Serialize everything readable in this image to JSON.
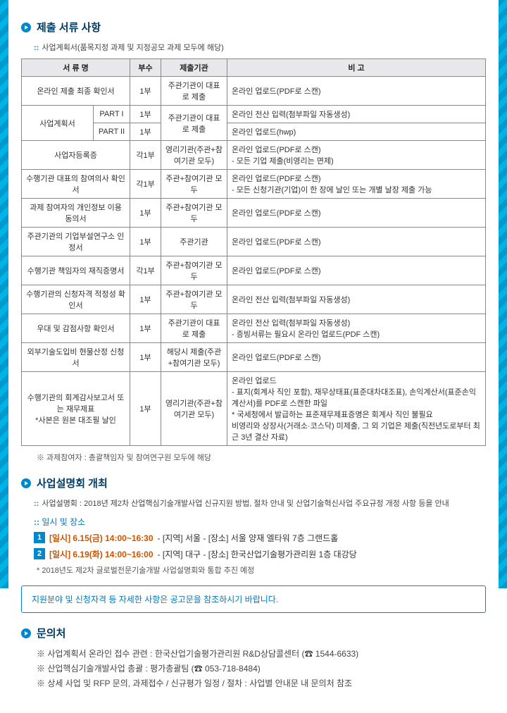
{
  "section1": {
    "title": "제출 서류 사항",
    "note": "사업계획서(품목지정 과제 및 지정공모 과제 모두에 해당)",
    "headers": [
      "서 류 명",
      "부수",
      "제출기관",
      "비 고"
    ],
    "rows": [
      {
        "c0": "온라인 제출 최종 확인서",
        "c1": "1부",
        "c2": "주관기관이 대표로 제출",
        "c3": "온라인 업로드(PDF로 스캔)"
      },
      {
        "c0_rowspan": 2,
        "c0": "사업계획서",
        "mid": "PART I",
        "c1": "1부",
        "c2_rowspan": 2,
        "c2": "주관기관이 대표로 제출",
        "c3": "온라인 전산 입력(첨부파일 자동생성)"
      },
      {
        "mid": "PART II",
        "c1": "1부",
        "c3": "온라인 업로드(hwp)"
      },
      {
        "c0": "사업자등록증",
        "c1": "각1부",
        "c2": "영리기관(주관+참여기관 모두)",
        "c3": "온라인 업로드(PDF로 스캔)\n- 모든 기업 제출(비영리는 면제)"
      },
      {
        "c0": "수행기관 대표의 참여의사 확인서",
        "c1": "각1부",
        "c2": "주관+참여기관 모두",
        "c3": "온라인 업로드(PDF로 스캔)\n- 모든 신청기관(기업)이 한 장에 날인 또는 개별 날장 제출 가능"
      },
      {
        "c0": "과제 참여자의 개인정보 이용 동의서",
        "c1": "1부",
        "c2": "주관+참여기관 모두",
        "c3": "온라인 업로드(PDF로 스캔)"
      },
      {
        "c0": "주관기관의 기업부설연구소 인정서",
        "c1": "1부",
        "c2": "주관기관",
        "c3": "온라인 업로드(PDF로 스캔)"
      },
      {
        "c0": "수행기관 책임자의 재직증명서",
        "c1": "각1부",
        "c2": "주관+참여기관 모두",
        "c3": "온라인 업로드(PDF로 스캔)"
      },
      {
        "c0": "수행기관의 신청자격 적정성 확인서",
        "c1": "1부",
        "c2": "주관+참여기관 모두",
        "c3": "온라인 전산 입력(첨부파일 자동생성)"
      },
      {
        "c0": "우대 및 감점사항 확인서",
        "c1": "1부",
        "c2": "주관기관이 대표로 제출",
        "c3": "온라인 전산 입력(첨부파일 자동생성)\n- 증빙서류는 필요시 온라인 업로드(PDF 스캔)"
      },
      {
        "c0": "외부기술도입비 현물산정 신청서",
        "c1": "1부",
        "c2": "해당시 제출(주관+참여기관 모두)",
        "c3": "온라인 업로드(PDF로 스캔)"
      },
      {
        "c0": "수행기관의 회계감사보고서 또는 재무제표\n*사본은 원본 대조필 날인",
        "c1": "1부",
        "c2": "영리기관(주관+참여기관 모두)",
        "c3": "온라인 업로드\n- 표지(회계사 직인 포함), 재무상태표(표준대차대조표), 손익계산서(표준손익계산서)를 PDF로 스캔한 파일\n* 국세청에서 발급하는 표준재무제표증명은 회계사 직인 불필요\n비영리와 상장사(거래소·코스닥) 미제출, 그 외 기업은 제출(직전년도로부터 최근 3년 결산 자료)"
      }
    ],
    "footnote": "※ 과제참여자 : 총괄책임자 및 참여연구원 모두에 해당"
  },
  "section2": {
    "title": "사업설명회 개최",
    "desc": "사업설명회 : 2018년 제2차 산업핵심기술개발사업 신규지원 방법, 절차 안내 및 산업기술혁신사업 주요규정 개정 사항 등을 안내",
    "sub_head": "일시 및 장소",
    "items": [
      {
        "num": "1",
        "date": "[일시] 6.15(금) 14:00~16:30",
        "loc": "- [지역] 서울 - [장소] 서울 양재 엘타워 7층 그랜드홀"
      },
      {
        "num": "2",
        "date": "[일시] 6.19(화) 14:00~16:00",
        "loc": "- [지역] 대구 - [장소] 한국산업기술평가관리원 1층 대강당"
      }
    ],
    "note": "* 2018년도 제2차 글로벌전문기술개발 사업설명회와 통합 추진 예정"
  },
  "bluebox": "지원분야 및 신청자격 등 자세한 사항은 공고문을 참조하시기 바랍니다.",
  "section3": {
    "title": "문의처",
    "lines": [
      "※ 사업계획서 온라인 접수 관련 : 한국산업기술평가관리원 R&D상담콜센터 (☎ 1544-6633)",
      "※ 산업핵심기술개발사업 총괄 : 평가총괄팀 (☎ 053-718-8484)",
      "※ 상세 사업 및 RFP 문의, 과제접수 / 신규평가 일정 / 절차 : 사업별 안내문 내 문의처 참조"
    ]
  },
  "colors": {
    "accent": "#0088cc",
    "heading": "#003d66",
    "border": "#888",
    "th_bg": "#e8e8ec",
    "orange": "#cc5500"
  }
}
